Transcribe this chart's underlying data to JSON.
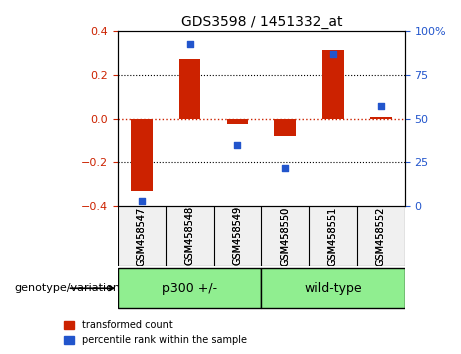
{
  "title": "GDS3598 / 1451332_at",
  "samples": [
    "GSM458547",
    "GSM458548",
    "GSM458549",
    "GSM458550",
    "GSM458551",
    "GSM458552"
  ],
  "red_values": [
    -0.33,
    0.275,
    -0.025,
    -0.08,
    0.315,
    0.01
  ],
  "blue_values": [
    3,
    93,
    35,
    22,
    87,
    57
  ],
  "ylim_left": [
    -0.4,
    0.4
  ],
  "ylim_right": [
    0,
    100
  ],
  "yticks_left": [
    -0.4,
    -0.2,
    0,
    0.2,
    0.4
  ],
  "yticks_right": [
    0,
    25,
    50,
    75,
    100
  ],
  "group1_label": "p300 +/-",
  "group2_label": "wild-type",
  "group1_indices": [
    0,
    1,
    2
  ],
  "group2_indices": [
    3,
    4,
    5
  ],
  "group1_color": "#90ee90",
  "group2_color": "#90ee90",
  "bar_color": "#cc2200",
  "dot_color": "#2255cc",
  "legend_red_label": "transformed count",
  "legend_blue_label": "percentile rank within the sample",
  "xlabel_label": "genotype/variation",
  "hline_color": "#cc2200",
  "grid_color": "black",
  "bg_color": "#f0f0f0",
  "bar_width": 0.45
}
